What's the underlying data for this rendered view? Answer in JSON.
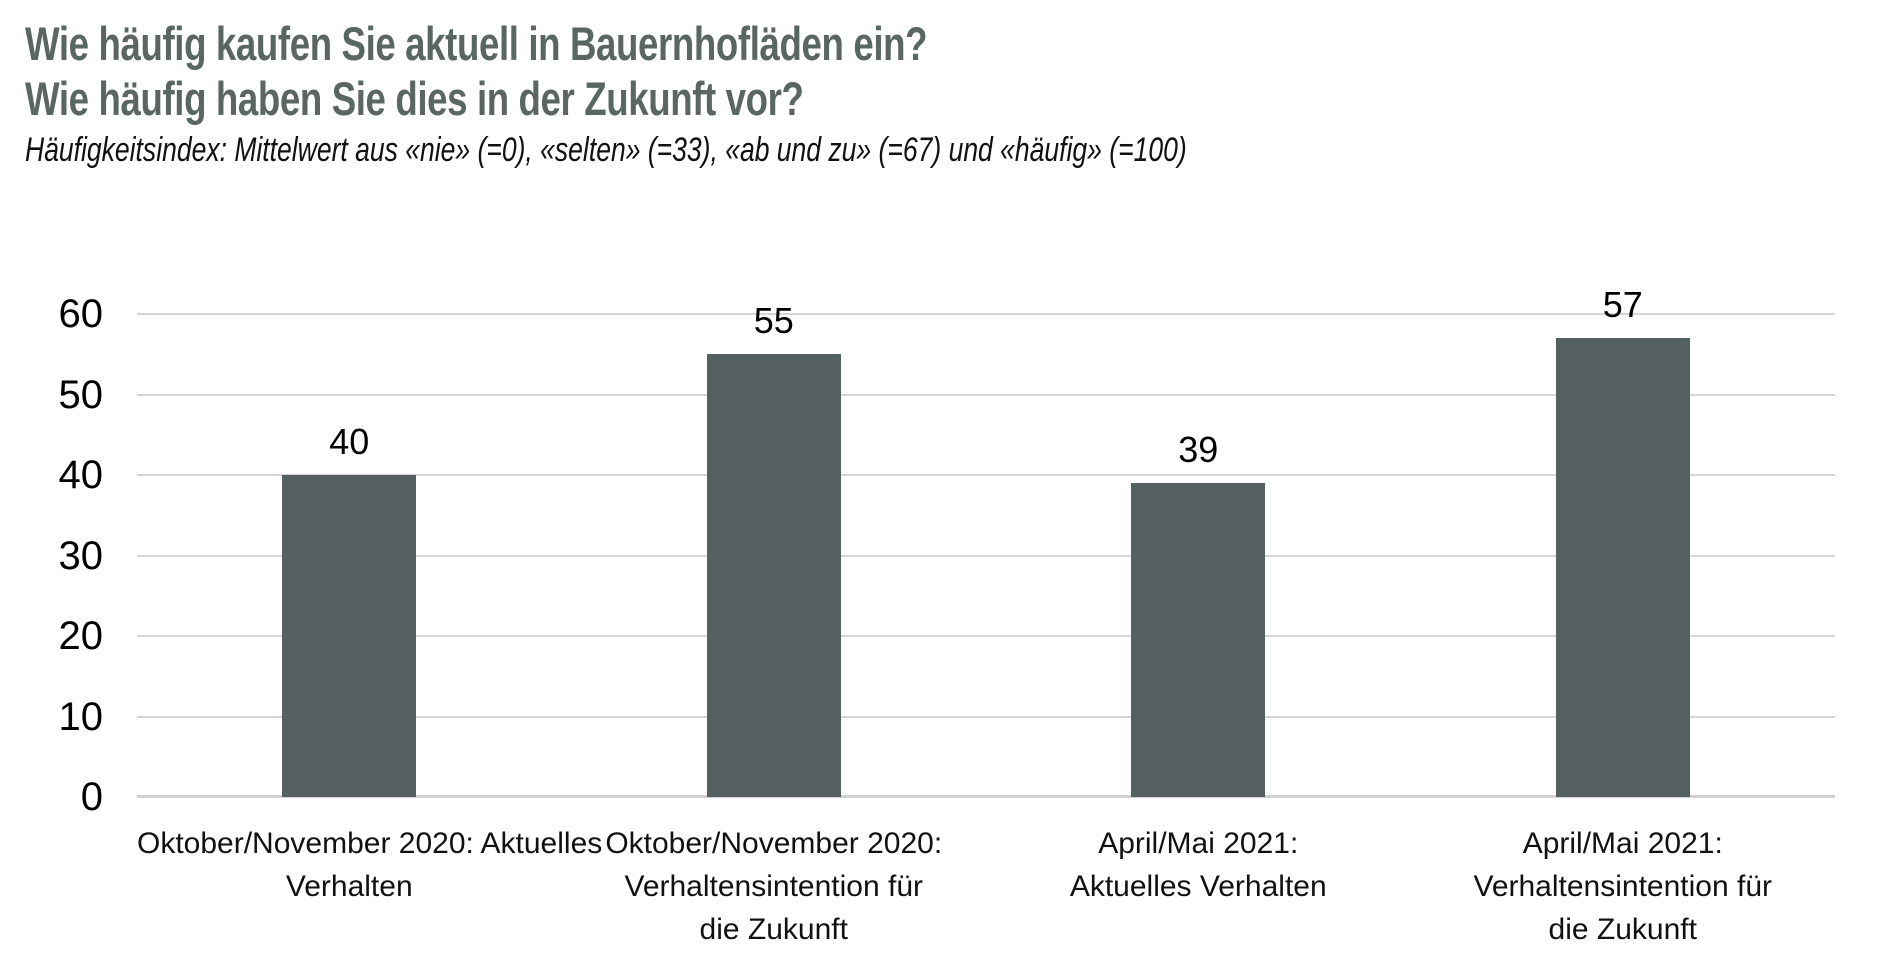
{
  "header": {
    "title_line1": "Wie häufig kaufen Sie aktuell in Bauernhofläden ein?",
    "title_line2": "Wie häufig haben Sie dies in der Zukunft vor?",
    "subtitle": "Häufigkeitsindex: Mittelwert aus «nie» (=0), «selten» (=33), «ab und zu» (=67) und «häufig» (=100)"
  },
  "colors": {
    "title_text": "#5a6663",
    "bar": "#556160",
    "gridline": "#d6d6d6",
    "axis_line": "#d2d2d2",
    "label_text": "#000000",
    "category_text": "#111111",
    "background": "#ffffff"
  },
  "chart_data": {
    "type": "bar",
    "title": "Wie häufig kaufen Sie aktuell in Bauernhofläden ein? Wie häufig haben Sie dies in der Zukunft vor?",
    "subtitle": "Häufigkeitsindex: Mittelwert aus «nie» (=0), «selten» (=33), «ab und zu» (=67) und «häufig» (=100)",
    "categories": [
      "Oktober/November 2020: Aktuelles Verhalten",
      "Oktober/November 2020: Verhaltensintention für die Zukunft",
      "April/Mai 2021: Aktuelles Verhalten",
      "April/Mai 2021: Verhaltensintention für die Zukunft"
    ],
    "category_lines": [
      [
        "Oktober/November 2020: Aktuelles",
        "Verhalten"
      ],
      [
        "Oktober/November 2020:",
        "Verhaltensintention für",
        "die Zukunft"
      ],
      [
        "April/Mai 2021:",
        "Aktuelles Verhalten"
      ],
      [
        "April/Mai 2021:",
        "Verhaltensintention für",
        "die Zukunft"
      ]
    ],
    "values": [
      40,
      55,
      39,
      57
    ],
    "data_labels": true,
    "xlabel": "",
    "ylabel": "",
    "ylim": [
      0,
      60
    ],
    "yticks": [
      0,
      10,
      20,
      30,
      40,
      50,
      60
    ],
    "grid": true,
    "legend": false
  }
}
